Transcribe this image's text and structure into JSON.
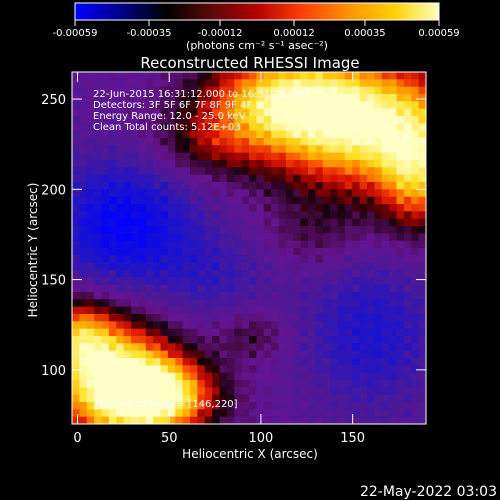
{
  "colorbar": {
    "tick_labels": [
      "-0.00059",
      "-0.00035",
      "-0.00012",
      "0.00012",
      "0.00035",
      "0.00059"
    ],
    "tick_values": [
      -0.00059,
      -0.00035,
      -0.00012,
      0.00012,
      0.00035,
      0.00059
    ],
    "range": [
      -0.00059,
      0.00059
    ],
    "units": "(photons cm⁻² s⁻¹ asec⁻²)",
    "gradient": [
      "#0000ff",
      "#00008b",
      "#000000",
      "#5a0a0a",
      "#b40000",
      "#ff4000",
      "#ff9000",
      "#ffd000",
      "#ffffc0"
    ]
  },
  "image": {
    "title": "Reconstructed RHESSI Image",
    "annotations": [
      "22-Jun-2015 16:31:12.000 to 16:31:28.000",
      "Detectors: 3F 5F 6F 7F 8F 9F 4F",
      "Energy Range: 12.0 - 25.0 keV",
      "Clean     Total counts: 5.12E+03"
    ],
    "peak_label": "Position of Peak = [146,220]",
    "timestamp": "22-May-2022 03:03"
  },
  "chart_data": {
    "type": "heatmap",
    "title": "Reconstructed RHESSI Image",
    "xlabel": "Heliocentric X (arcsec)",
    "ylabel": "Heliocentric Y (arcsec)",
    "xlim": [
      -3,
      190
    ],
    "ylim": [
      70,
      265
    ],
    "xticks": [
      0,
      50,
      100,
      150
    ],
    "yticks": [
      100,
      150,
      200,
      250
    ],
    "xtick_labels": [
      "0",
      "50",
      "100",
      "150"
    ],
    "ytick_labels": [
      "100",
      "150",
      "200",
      "250"
    ],
    "peak_position": [
      146,
      220
    ],
    "colorbar_range": [
      -0.00059,
      0.00059
    ],
    "colormap": "blue-black-red-yellow-white"
  }
}
